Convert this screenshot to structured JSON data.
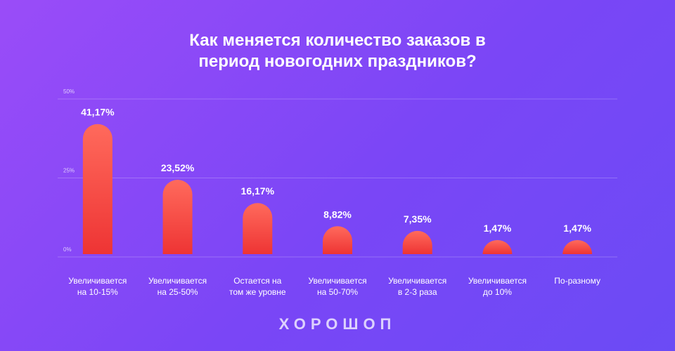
{
  "title_lines": [
    "Как меняется количество заказов в",
    "период новогодних праздников?"
  ],
  "logo": "ХОРОШОП",
  "colors": {
    "background_start": "#9a4cf8",
    "background_end": "#6b4bf5",
    "bar_top": "#ff6a5c",
    "bar_bottom": "#ee3434",
    "text": "#ffffff"
  },
  "chart_data": {
    "type": "bar",
    "title": "Как меняется количество заказов в период новогодних праздников?",
    "categories": [
      [
        "Увеличивается",
        "на 10-15%"
      ],
      [
        "Увеличивается",
        "на 25-50%"
      ],
      [
        "Остается на",
        "том же уровне"
      ],
      [
        "Увеличивается",
        "на 50-70%"
      ],
      [
        "Увеличивается",
        "в 2-3 раза"
      ],
      [
        "Увеличивается",
        "до 10%"
      ],
      [
        "По-разному"
      ]
    ],
    "values": [
      41.17,
      23.52,
      16.17,
      8.82,
      7.35,
      1.47,
      1.47
    ],
    "value_labels": [
      "41,17%",
      "23,52%",
      "16,17%",
      "8,82%",
      "7,35%",
      "1,47%",
      "1,47%"
    ],
    "yticks": [
      "0%",
      "25%",
      "50%"
    ],
    "ylim": [
      0,
      50
    ],
    "grid": true,
    "legend": "none"
  }
}
